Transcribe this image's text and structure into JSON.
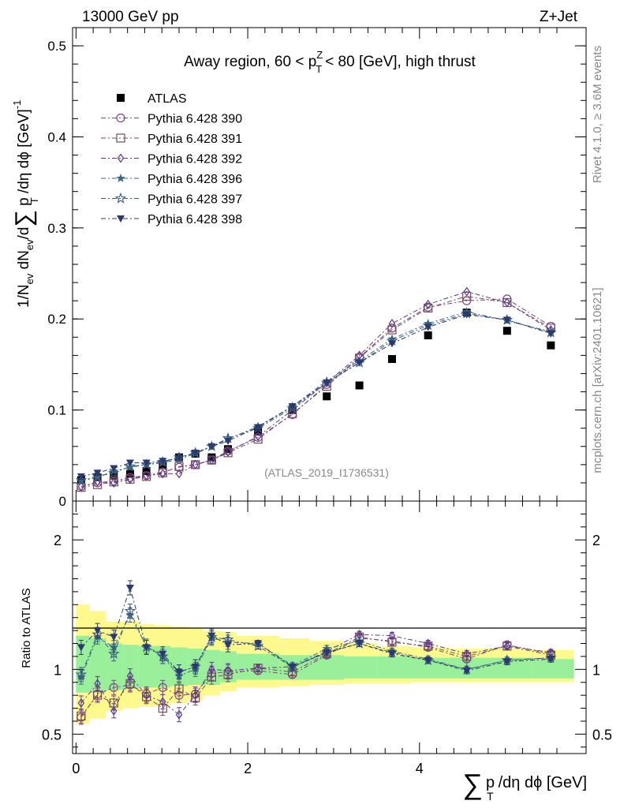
{
  "header": {
    "left": "13000 GeV pp",
    "right": "Z+Jet"
  },
  "side": {
    "rivet": "Rivet 4.1.0, ≥ 3.6M events",
    "mcplots": "mcplots.cern.ch [arXiv:2401.10621]"
  },
  "chart_data": [
    {
      "type": "scatter",
      "title": "Away region, 60 < p",
      "title_sup": "Z",
      "title_sub": "T",
      "title_tail": "< 80 [GeV], high thrust",
      "analysis_label": "(ATLAS_2019_I1736531)",
      "ylabel": "1/N",
      "ylabel_full": "1/N_ev dN_ev/d∑ p_T /dη dϕ [GeV]^-1",
      "ylabel_parts": {
        "sub_ev": "ev",
        "dN": " dN",
        "d": "/d",
        "sum": "∑",
        "p": " p",
        "sub_T": "T",
        "tail": " /dη dϕ  [GeV]",
        "sup": "-1"
      },
      "xlim": [
        -0.04,
        5.94
      ],
      "ylim": [
        0,
        0.52
      ],
      "yticks": [
        {
          "v": 0,
          "l": "0"
        },
        {
          "v": 0.1,
          "l": "0.1"
        },
        {
          "v": 0.2,
          "l": "0.2"
        },
        {
          "v": 0.3,
          "l": "0.3"
        },
        {
          "v": 0.4,
          "l": "0.4"
        },
        {
          "v": 0.5,
          "l": "0.5"
        }
      ],
      "x": [
        0.06,
        0.25,
        0.44,
        0.63,
        0.82,
        1.01,
        1.2,
        1.39,
        1.58,
        1.77,
        2.12,
        2.52,
        2.92,
        3.3,
        3.68,
        4.1,
        4.55,
        5.02,
        5.53
      ],
      "series": [
        {
          "name": "ATLAS",
          "marker": "square-filled",
          "color": "#000000",
          "values": [
            0.023,
            0.026,
            0.028,
            0.03,
            0.033,
            0.04,
            0.048,
            0.052,
            0.048,
            0.057,
            0.077,
            0.1,
            0.115,
            0.127,
            0.156,
            0.182,
            0.207,
            0.187,
            0.171
          ]
        },
        {
          "name": "Pythia 6.428 390",
          "marker": "circle-open",
          "color": "#7a4a80",
          "values": [
            0.016,
            0.02,
            0.022,
            0.026,
            0.028,
            0.032,
            0.037,
            0.04,
            0.045,
            0.055,
            0.07,
            0.095,
            0.128,
            0.158,
            0.19,
            0.213,
            0.22,
            0.222,
            0.192
          ]
        },
        {
          "name": "Pythia 6.428 391",
          "marker": "square-open",
          "color": "#7a4a5a",
          "values": [
            0.015,
            0.018,
            0.021,
            0.024,
            0.027,
            0.031,
            0.038,
            0.04,
            0.045,
            0.053,
            0.068,
            0.096,
            0.126,
            0.157,
            0.188,
            0.212,
            0.225,
            0.218,
            0.19
          ]
        },
        {
          "name": "Pythia 6.428 392",
          "marker": "diamond-open",
          "color": "#5a3a90",
          "values": [
            0.016,
            0.021,
            0.02,
            0.024,
            0.028,
            0.03,
            0.03,
            0.04,
            0.045,
            0.054,
            0.071,
            0.1,
            0.13,
            0.16,
            0.195,
            0.216,
            0.23,
            0.218,
            0.188
          ]
        },
        {
          "name": "Pythia 6.428 396",
          "marker": "star-filled",
          "color": "#3a6a80",
          "values": [
            0.022,
            0.026,
            0.033,
            0.037,
            0.04,
            0.042,
            0.046,
            0.052,
            0.06,
            0.068,
            0.082,
            0.104,
            0.132,
            0.154,
            0.178,
            0.195,
            0.208,
            0.198,
            0.186
          ]
        },
        {
          "name": "Pythia 6.428 397",
          "marker": "star-open",
          "color": "#3a5a80",
          "values": [
            0.023,
            0.027,
            0.031,
            0.038,
            0.04,
            0.043,
            0.048,
            0.053,
            0.06,
            0.069,
            0.08,
            0.102,
            0.13,
            0.152,
            0.176,
            0.193,
            0.206,
            0.199,
            0.185
          ]
        },
        {
          "name": "Pythia 6.428 398",
          "marker": "triangle-down-filled",
          "color": "#2a3a70",
          "values": [
            0.027,
            0.031,
            0.036,
            0.042,
            0.042,
            0.044,
            0.047,
            0.053,
            0.06,
            0.066,
            0.081,
            0.104,
            0.13,
            0.152,
            0.173,
            0.191,
            0.205,
            0.199,
            0.184
          ]
        }
      ]
    },
    {
      "type": "scatter",
      "ylabel": "Ratio to ATLAS",
      "xlabel": "/dη dϕ [GeV]",
      "xlabel_parts": {
        "sum": "∑",
        "p": "p",
        "sub_T": "T",
        "tail": "/dη dϕ [GeV]"
      },
      "xlim": [
        -0.04,
        5.94
      ],
      "ylim": [
        0.35,
        2.3
      ],
      "xticks": [
        {
          "v": 0,
          "l": "0"
        },
        {
          "v": 2,
          "l": "2"
        },
        {
          "v": 4,
          "l": "4"
        }
      ],
      "yticks": [
        {
          "v": 0.5,
          "l": "0.5"
        },
        {
          "v": 1,
          "l": "1"
        },
        {
          "v": 2,
          "l": "2"
        }
      ],
      "band_edges": [
        0,
        0.16,
        0.35,
        0.54,
        0.73,
        0.91,
        1.1,
        1.3,
        1.48,
        1.68,
        1.87,
        2.37,
        2.72,
        3.12,
        3.5,
        3.9,
        4.35,
        4.8,
        5.3,
        5.8
      ],
      "band_total_up": [
        1.5,
        1.45,
        1.37,
        1.37,
        1.35,
        1.34,
        1.33,
        1.32,
        1.3,
        1.29,
        1.26,
        1.24,
        1.22,
        1.2,
        1.18,
        1.17,
        1.16,
        1.16,
        1.15
      ],
      "band_total_down": [
        0.58,
        0.62,
        0.68,
        0.7,
        0.71,
        0.72,
        0.74,
        0.76,
        0.8,
        0.83,
        0.86,
        0.87,
        0.88,
        0.89,
        0.89,
        0.9,
        0.9,
        0.9,
        0.9
      ],
      "band_stat_up": [
        1.26,
        1.24,
        1.2,
        1.19,
        1.18,
        1.18,
        1.17,
        1.16,
        1.15,
        1.14,
        1.12,
        1.11,
        1.11,
        1.1,
        1.1,
        1.09,
        1.09,
        1.09,
        1.08
      ],
      "band_stat_down": [
        0.82,
        0.82,
        0.84,
        0.85,
        0.86,
        0.86,
        0.87,
        0.88,
        0.88,
        0.9,
        0.92,
        0.92,
        0.92,
        0.93,
        0.93,
        0.93,
        0.93,
        0.93,
        0.93
      ],
      "x": [
        0.06,
        0.25,
        0.44,
        0.63,
        0.82,
        1.01,
        1.2,
        1.39,
        1.58,
        1.77,
        2.12,
        2.52,
        2.92,
        3.3,
        3.68,
        4.1,
        4.55,
        5.02,
        5.53
      ],
      "series": [
        {
          "name": "Pythia 6.428 390",
          "marker": "circle-open",
          "color": "#7a4a80",
          "values": [
            0.63,
            0.81,
            0.86,
            0.88,
            0.81,
            0.86,
            0.8,
            0.81,
            0.97,
            0.98,
            0.99,
            0.96,
            1.11,
            1.24,
            1.22,
            1.17,
            1.08,
            1.19,
            1.12
          ]
        },
        {
          "name": "Pythia 6.428 391",
          "marker": "square-open",
          "color": "#7a4a5a",
          "values": [
            0.64,
            0.8,
            0.74,
            0.89,
            0.79,
            0.7,
            0.85,
            0.78,
            0.94,
            0.96,
            1.01,
            0.98,
            1.12,
            1.25,
            1.21,
            1.18,
            1.1,
            1.18,
            1.11
          ]
        },
        {
          "name": "Pythia 6.428 392",
          "marker": "diamond-open",
          "color": "#5a3a90",
          "values": [
            0.74,
            0.89,
            0.68,
            0.95,
            0.8,
            0.75,
            0.65,
            0.8,
            1.0,
            0.99,
            1.01,
            1.02,
            1.14,
            1.27,
            1.26,
            1.2,
            1.12,
            1.18,
            1.13
          ]
        },
        {
          "name": "Pythia 6.428 396",
          "marker": "star-filled",
          "color": "#3a6a80",
          "values": [
            0.94,
            1.25,
            1.17,
            1.42,
            1.18,
            1.1,
            0.95,
            1.0,
            1.24,
            1.21,
            1.2,
            1.03,
            1.16,
            1.22,
            1.14,
            1.08,
            1.0,
            1.07,
            1.09
          ]
        },
        {
          "name": "Pythia 6.428 397",
          "marker": "star-open",
          "color": "#3a5a80",
          "values": [
            0.96,
            1.27,
            1.12,
            1.45,
            1.17,
            1.1,
            0.98,
            1.02,
            1.25,
            1.23,
            1.18,
            1.02,
            1.13,
            1.2,
            1.13,
            1.07,
            1.0,
            1.07,
            1.09
          ]
        },
        {
          "name": "Pythia 6.428 398",
          "marker": "triangle-down-filled",
          "color": "#2a3a70",
          "values": [
            1.17,
            1.3,
            1.25,
            1.63,
            1.17,
            1.12,
            0.98,
            1.02,
            1.26,
            1.19,
            1.2,
            1.02,
            1.13,
            1.2,
            1.12,
            1.07,
            0.99,
            1.06,
            1.08
          ]
        }
      ]
    }
  ]
}
